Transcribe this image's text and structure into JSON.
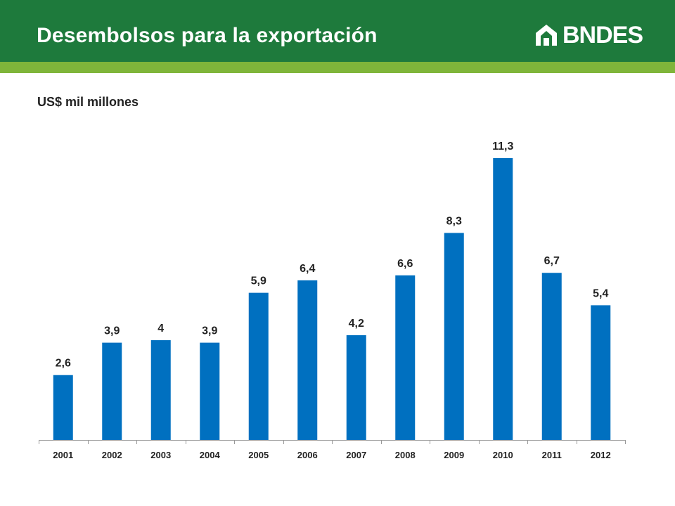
{
  "header": {
    "title": "Desembolsos para la exportación",
    "logo_text": "BNDES",
    "colors": {
      "bar": "#1e7a3c",
      "stripe": "#7fb53a",
      "text": "#ffffff"
    }
  },
  "chart_data": {
    "type": "bar",
    "title": "",
    "unit_label": "US$ mil millones",
    "xlabel": "",
    "ylabel": "",
    "categories": [
      "2001",
      "2002",
      "2003",
      "2004",
      "2005",
      "2006",
      "2007",
      "2008",
      "2009",
      "2010",
      "2011",
      "2012"
    ],
    "values": [
      2.6,
      3.9,
      4,
      3.9,
      5.9,
      6.4,
      4.2,
      6.6,
      8.3,
      11.3,
      6.7,
      5.4
    ],
    "value_labels": [
      "2,6",
      "3,9",
      "4",
      "3,9",
      "5,9",
      "6,4",
      "4,2",
      "6,6",
      "8,3",
      "11,3",
      "6,7",
      "5,4"
    ],
    "ylim": [
      0,
      11.3
    ],
    "bar_color": "#0070c0",
    "grid": false,
    "legend": "none"
  }
}
